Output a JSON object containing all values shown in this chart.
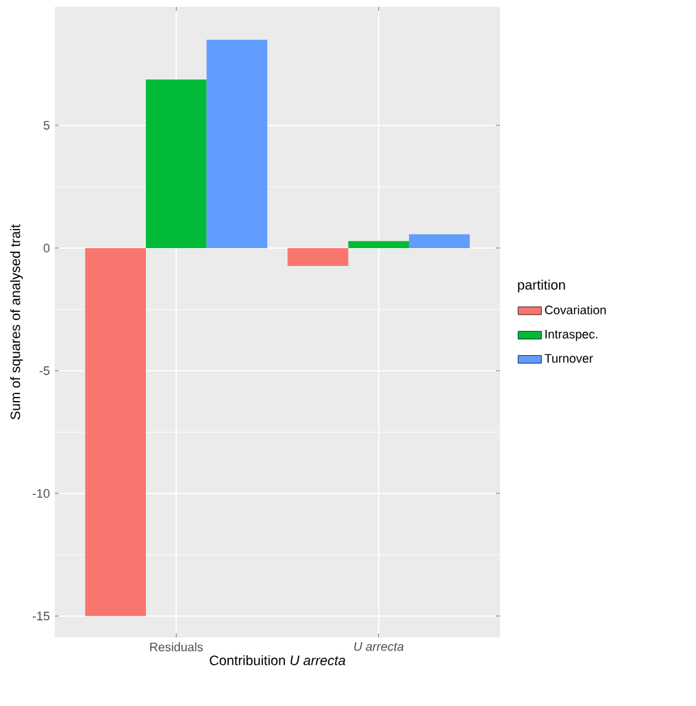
{
  "chart_data": {
    "type": "bar",
    "xlabel": "Contribuition *U arrecta*",
    "ylabel": "Sum of squares of analysed trait",
    "legend_title": "partition",
    "categories": [
      "Residuals",
      "*U arrecta*"
    ],
    "series": [
      {
        "name": "Covariation",
        "color": "#f8766d",
        "values": [
          -15.0,
          -0.73
        ]
      },
      {
        "name": "Intraspec.",
        "color": "#00ba38",
        "values": [
          6.87,
          0.28
        ]
      },
      {
        "name": "Turnover",
        "color": "#619cff",
        "values": [
          8.49,
          0.56
        ]
      }
    ],
    "ylim": [
      -15.87,
      9.83
    ],
    "yticks": [
      -15,
      -10,
      -5,
      0,
      5
    ],
    "grid": true,
    "legend": "right"
  }
}
